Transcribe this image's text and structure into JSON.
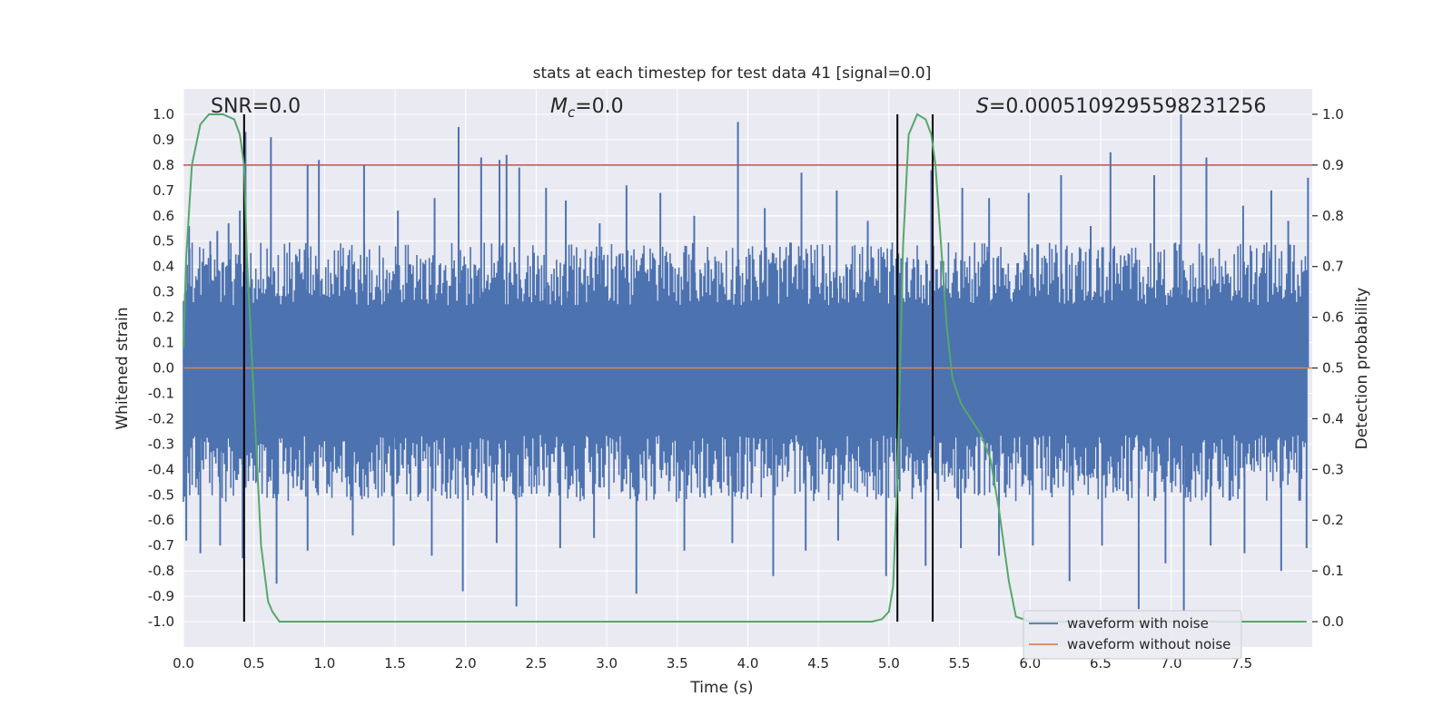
{
  "chart_data": {
    "type": "line",
    "title": "stats at each timestep for test data 41 [signal=0.0]",
    "xlabel": "Time (s)",
    "ylabel": "Whitened strain",
    "y2label": "Detection probability",
    "xlim": [
      0.0,
      8.0
    ],
    "ylim": [
      -1.1,
      1.1
    ],
    "y2lim": [
      -0.05,
      1.05
    ],
    "xticks": [
      "0.0",
      "0.5",
      "1.0",
      "1.5",
      "2.0",
      "2.5",
      "3.0",
      "3.5",
      "4.0",
      "4.5",
      "5.0",
      "5.5",
      "6.0",
      "6.5",
      "7.0",
      "7.5"
    ],
    "yticks": [
      "1.0",
      "0.9",
      "0.8",
      "0.7",
      "0.6",
      "0.5",
      "0.4",
      "0.3",
      "0.2",
      "0.1",
      "0.0",
      "-0.1",
      "-0.2",
      "-0.3",
      "-0.4",
      "-0.5",
      "-0.6",
      "-0.7",
      "-0.8",
      "-0.9",
      "-1.0"
    ],
    "y2ticks": [
      "1.0",
      "0.9",
      "0.8",
      "0.7",
      "0.6",
      "0.5",
      "0.4",
      "0.3",
      "0.2",
      "0.1",
      "0.0"
    ],
    "annotations": {
      "snr_prefix": "SNR=",
      "snr_value": "0.0",
      "mc_symbol": "M",
      "mc_subscript": "c",
      "mc_value": "=0.0",
      "s_symbol": "S",
      "s_value": "=0.000510929559823125​6"
    },
    "threshold": 0.8,
    "vlines": [
      0.43,
      5.06,
      5.31
    ],
    "noise_envelope": {
      "typical_upper": 0.45,
      "typical_lower": -0.48,
      "upper_spikes": [
        [
          0.04,
          0.56
        ],
        [
          0.19,
          0.5
        ],
        [
          0.24,
          0.54
        ],
        [
          0.32,
          0.57
        ],
        [
          0.4,
          0.62
        ],
        [
          0.44,
          0.93
        ],
        [
          0.62,
          0.91
        ],
        [
          0.88,
          0.8
        ],
        [
          0.96,
          0.82
        ],
        [
          1.28,
          0.8
        ],
        [
          1.52,
          0.62
        ],
        [
          1.78,
          0.67
        ],
        [
          1.95,
          0.95
        ],
        [
          2.11,
          0.83
        ],
        [
          2.24,
          0.82
        ],
        [
          2.29,
          0.84
        ],
        [
          2.38,
          0.79
        ],
        [
          2.57,
          0.71
        ],
        [
          2.71,
          0.66
        ],
        [
          2.95,
          0.57
        ],
        [
          3.14,
          0.72
        ],
        [
          3.38,
          0.69
        ],
        [
          3.62,
          0.6
        ],
        [
          3.93,
          0.97
        ],
        [
          4.12,
          0.63
        ],
        [
          4.38,
          0.77
        ],
        [
          4.63,
          0.7
        ],
        [
          4.85,
          0.58
        ],
        [
          5.3,
          0.78
        ],
        [
          5.52,
          0.71
        ],
        [
          5.71,
          0.67
        ],
        [
          5.99,
          0.69
        ],
        [
          6.22,
          0.76
        ],
        [
          6.43,
          0.56
        ],
        [
          6.57,
          0.85
        ],
        [
          6.88,
          0.76
        ],
        [
          7.07,
          1.0
        ],
        [
          7.25,
          0.83
        ],
        [
          7.51,
          0.64
        ],
        [
          7.71,
          0.7
        ],
        [
          7.83,
          0.58
        ],
        [
          7.97,
          0.75
        ]
      ],
      "lower_spikes": [
        [
          0.02,
          -0.68
        ],
        [
          0.12,
          -0.73
        ],
        [
          0.26,
          -0.7
        ],
        [
          0.42,
          -0.75
        ],
        [
          0.66,
          -0.85
        ],
        [
          0.88,
          -0.72
        ],
        [
          1.2,
          -0.66
        ],
        [
          1.49,
          -0.7
        ],
        [
          1.76,
          -0.74
        ],
        [
          1.98,
          -0.88
        ],
        [
          2.22,
          -0.69
        ],
        [
          2.36,
          -0.94
        ],
        [
          2.67,
          -0.71
        ],
        [
          2.91,
          -0.67
        ],
        [
          3.21,
          -0.89
        ],
        [
          3.55,
          -0.72
        ],
        [
          3.89,
          -0.69
        ],
        [
          4.18,
          -0.82
        ],
        [
          4.41,
          -0.72
        ],
        [
          4.64,
          -0.68
        ],
        [
          4.98,
          -0.82
        ],
        [
          5.26,
          -0.78
        ],
        [
          5.51,
          -0.71
        ],
        [
          5.78,
          -0.74
        ],
        [
          6.02,
          -0.7
        ],
        [
          6.28,
          -0.84
        ],
        [
          6.51,
          -0.7
        ],
        [
          6.77,
          -0.95
        ],
        [
          6.96,
          -0.77
        ],
        [
          7.09,
          -0.96
        ],
        [
          7.28,
          -0.7
        ],
        [
          7.52,
          -0.73
        ],
        [
          7.78,
          -0.8
        ],
        [
          7.96,
          -0.71
        ]
      ]
    },
    "series": [
      {
        "name": "waveform with noise",
        "color": "#4c72b0",
        "axis": "left"
      },
      {
        "name": "waveform without noise",
        "color": "#dd8452",
        "axis": "left",
        "y_constant": 0.0
      },
      {
        "name": "detection probability",
        "color": "#55a868",
        "axis": "right",
        "x": [
          0.0,
          0.02,
          0.06,
          0.12,
          0.18,
          0.28,
          0.36,
          0.4,
          0.43,
          0.45,
          0.48,
          0.51,
          0.55,
          0.6,
          0.63,
          0.68,
          0.75,
          1.0,
          2.0,
          3.0,
          4.0,
          4.6,
          4.88,
          4.95,
          5.0,
          5.03,
          5.06,
          5.1,
          5.14,
          5.2,
          5.26,
          5.3,
          5.33,
          5.36,
          5.41,
          5.45,
          5.51,
          5.58,
          5.65,
          5.72,
          5.78,
          5.85,
          5.9,
          6.0,
          7.0,
          7.96
        ],
        "y": [
          0.54,
          0.72,
          0.9,
          0.98,
          1.0,
          1.0,
          0.99,
          0.96,
          0.9,
          0.72,
          0.55,
          0.38,
          0.15,
          0.04,
          0.02,
          0.0,
          0.0,
          0.0,
          0.0,
          0.0,
          0.0,
          0.0,
          0.0,
          0.005,
          0.02,
          0.07,
          0.28,
          0.74,
          0.96,
          1.0,
          0.99,
          0.96,
          0.9,
          0.78,
          0.58,
          0.48,
          0.43,
          0.4,
          0.37,
          0.32,
          0.22,
          0.08,
          0.01,
          0.0,
          0.0,
          0.0
        ]
      }
    ],
    "legend": {
      "placement": "lower-right",
      "entries": [
        {
          "label": "waveform with noise",
          "color": "#4c72b0"
        },
        {
          "label": "waveform without noise",
          "color": "#dd8452"
        }
      ]
    },
    "colors": {
      "background": "#eaeaf2",
      "grid": "#ffffff",
      "threshold": "#c44e52",
      "vline": "#000000",
      "noise": "#4c72b0",
      "probability": "#55a868"
    }
  }
}
